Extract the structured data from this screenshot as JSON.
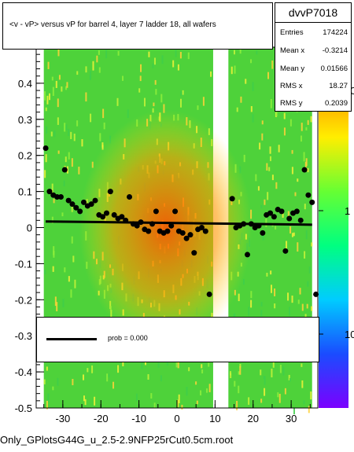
{
  "chart_data": {
    "type": "scatter",
    "title": "<v - vP>       versus   vP for barrel 4, layer 7 ladder 18, all wafers",
    "xlim": [
      -37,
      37
    ],
    "ylim": [
      -0.5,
      0.5
    ],
    "x_ticks": [
      -30,
      -20,
      -10,
      0,
      10,
      20,
      30
    ],
    "x_tick_labels": [
      "-30",
      "-20",
      "-10",
      "0",
      "10",
      "20",
      "30"
    ],
    "y_ticks": [
      -0.5,
      -0.4,
      -0.3,
      -0.2,
      -0.1,
      0,
      0.1,
      0.2,
      0.3,
      0.4
    ],
    "y_tick_labels": [
      "-0.5",
      "-0.4",
      "-0.3",
      "-0.2",
      "-0.1",
      "0",
      "0.1",
      "0.2",
      "0.3",
      "0.4"
    ],
    "colorbar_tick_labels": [
      "10",
      "1",
      "10"
    ],
    "gap_x": [
      9.5,
      13.5
    ],
    "fit_line": [
      {
        "x": -34.5,
        "y": 0.017
      },
      {
        "x": 35.5,
        "y": 0.008
      }
    ],
    "profile_points": [
      {
        "x": -34.5,
        "y": 0.22
      },
      {
        "x": -33.5,
        "y": 0.1
      },
      {
        "x": -32.5,
        "y": 0.09
      },
      {
        "x": -31.5,
        "y": 0.085
      },
      {
        "x": -30.5,
        "y": 0.085
      },
      {
        "x": -29.5,
        "y": 0.16
      },
      {
        "x": -28.5,
        "y": 0.075
      },
      {
        "x": -27.5,
        "y": 0.065
      },
      {
        "x": -26.5,
        "y": 0.055
      },
      {
        "x": -25.5,
        "y": 0.045
      },
      {
        "x": -24.5,
        "y": 0.07
      },
      {
        "x": -23.5,
        "y": 0.06
      },
      {
        "x": -22.5,
        "y": 0.065
      },
      {
        "x": -21.5,
        "y": 0.075
      },
      {
        "x": -20.5,
        "y": 0.035
      },
      {
        "x": -19.5,
        "y": 0.03
      },
      {
        "x": -18.5,
        "y": 0.04
      },
      {
        "x": -17.5,
        "y": 0.1
      },
      {
        "x": -16.5,
        "y": 0.035
      },
      {
        "x": -15.5,
        "y": 0.025
      },
      {
        "x": -14.5,
        "y": 0.03
      },
      {
        "x": -13.5,
        "y": 0.02
      },
      {
        "x": -12.5,
        "y": 0.085
      },
      {
        "x": -11.5,
        "y": 0.01
      },
      {
        "x": -10.5,
        "y": 0.005
      },
      {
        "x": -9.5,
        "y": 0.015
      },
      {
        "x": -8.5,
        "y": -0.005
      },
      {
        "x": -7.5,
        "y": -0.01
      },
      {
        "x": -6.5,
        "y": 0.01
      },
      {
        "x": -5.5,
        "y": 0.045
      },
      {
        "x": -4.5,
        "y": -0.01
      },
      {
        "x": -3.5,
        "y": -0.015
      },
      {
        "x": -2.5,
        "y": -0.01
      },
      {
        "x": -1.5,
        "y": 0.005
      },
      {
        "x": -0.5,
        "y": 0.045
      },
      {
        "x": 0.5,
        "y": -0.01
      },
      {
        "x": 1.5,
        "y": -0.015
      },
      {
        "x": 2.5,
        "y": -0.03
      },
      {
        "x": 3.5,
        "y": -0.02
      },
      {
        "x": 4.5,
        "y": -0.07
      },
      {
        "x": 5.5,
        "y": -0.005
      },
      {
        "x": 6.5,
        "y": 0.0
      },
      {
        "x": 7.5,
        "y": -0.01
      },
      {
        "x": 8.5,
        "y": -0.185
      },
      {
        "x": 14.5,
        "y": 0.08
      },
      {
        "x": 15.5,
        "y": 0.0
      },
      {
        "x": 16.5,
        "y": 0.005
      },
      {
        "x": 17.5,
        "y": 0.01
      },
      {
        "x": 18.5,
        "y": -0.075
      },
      {
        "x": 19.5,
        "y": 0.01
      },
      {
        "x": 20.5,
        "y": 0.0
      },
      {
        "x": 21.5,
        "y": 0.005
      },
      {
        "x": 22.5,
        "y": -0.015
      },
      {
        "x": 23.5,
        "y": 0.035
      },
      {
        "x": 24.5,
        "y": 0.04
      },
      {
        "x": 25.5,
        "y": 0.03
      },
      {
        "x": 26.5,
        "y": 0.05
      },
      {
        "x": 27.5,
        "y": 0.045
      },
      {
        "x": 28.5,
        "y": -0.065
      },
      {
        "x": 29.5,
        "y": 0.025
      },
      {
        "x": 30.5,
        "y": 0.04
      },
      {
        "x": 31.5,
        "y": 0.045
      },
      {
        "x": 32.5,
        "y": 0.02
      },
      {
        "x": 33.5,
        "y": 0.16
      },
      {
        "x": 34.5,
        "y": 0.09
      },
      {
        "x": 35.5,
        "y": 0.07
      },
      {
        "x": 36.5,
        "y": -0.185
      }
    ],
    "legend": {
      "entry": "prob = 0.000"
    }
  },
  "stats": {
    "name": "dvvP7018",
    "rows": [
      {
        "label": "Entries",
        "value": "174224"
      },
      {
        "label": "Mean x",
        "value": "-0.3214"
      },
      {
        "label": "Mean y",
        "value": "0.01566"
      },
      {
        "label": "RMS x",
        "value": "18.27"
      },
      {
        "label": "RMS y",
        "value": "0.2039"
      }
    ]
  },
  "footer": "Only_GPlotsG44G_u_2.5-2.9NFP25rCut0.5cm.root",
  "colors": {
    "frame": "#000000",
    "background": "#ffffff",
    "points": "#000000"
  }
}
